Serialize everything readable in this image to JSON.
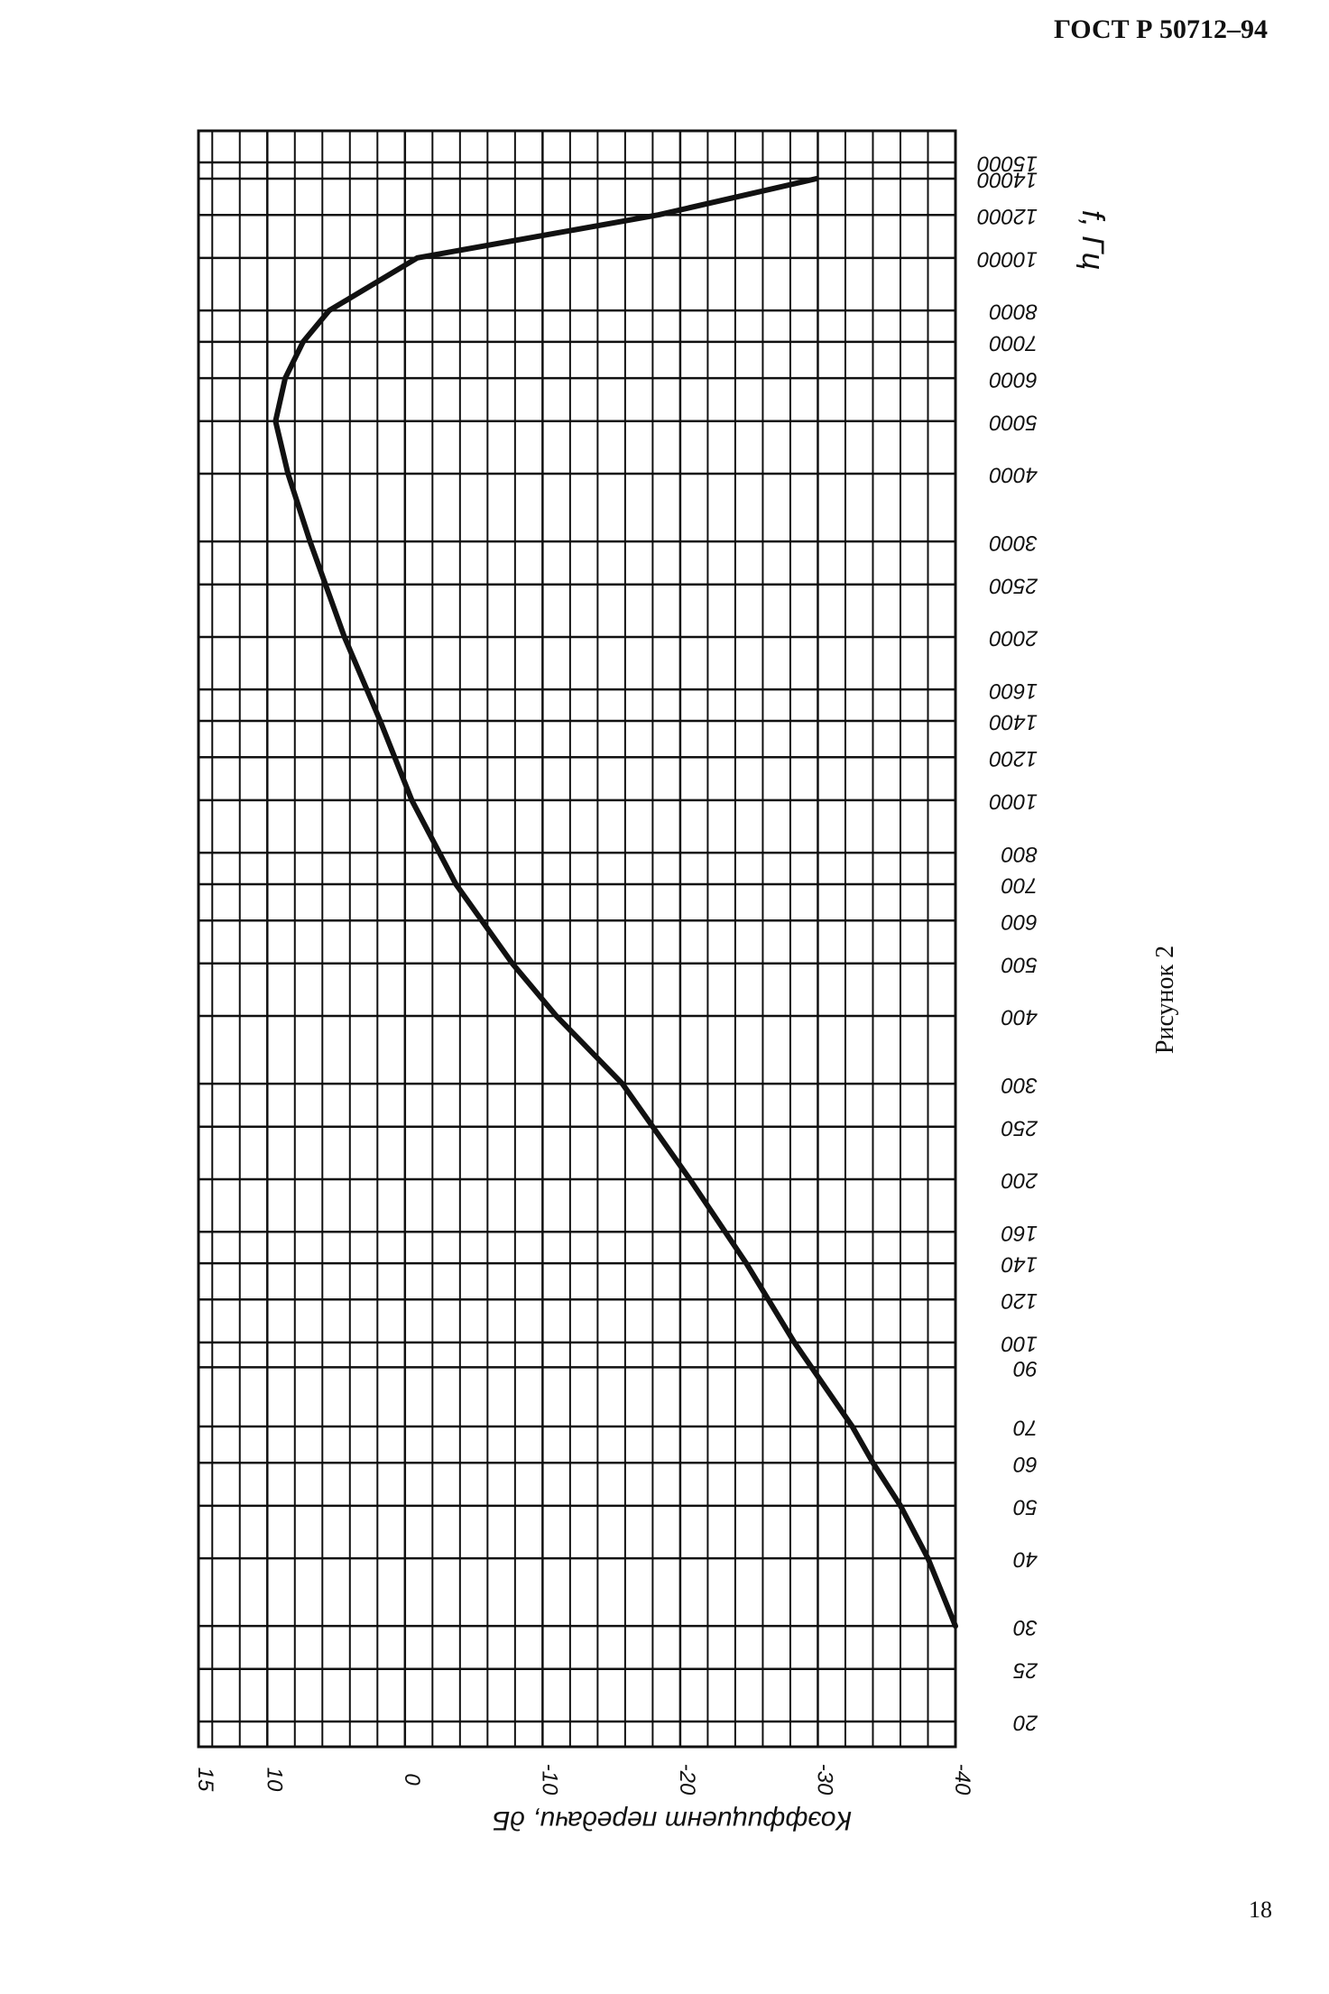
{
  "header": "ГОСТ Р 50712–94",
  "caption": "Рисунок 2",
  "page_number": "18",
  "chart_data": {
    "type": "line",
    "x_label": "f, Гц",
    "y_label": "Коэффициент передачи, дБ",
    "x_log": true,
    "xlim": [
      20,
      15000
    ],
    "xticks": [
      20,
      25,
      30,
      40,
      50,
      60,
      70,
      90,
      100,
      120,
      140,
      160,
      200,
      250,
      300,
      400,
      500,
      600,
      700,
      800,
      1000,
      1200,
      1400,
      1600,
      2000,
      2500,
      3000,
      4000,
      5000,
      6000,
      7000,
      8000,
      10000,
      12000,
      14000,
      15000
    ],
    "ylim": [
      15,
      -40
    ],
    "yticks": [
      15,
      10,
      0,
      -10,
      -20,
      -30,
      -40
    ],
    "yminorticks": [
      14,
      12,
      8,
      6,
      4,
      2,
      -2,
      -4,
      -6,
      -8,
      -12,
      -14,
      -16,
      -18,
      -22,
      -24,
      -26,
      -28,
      -32,
      -34,
      -36,
      -38
    ],
    "grid": true,
    "color": "#111111",
    "x": [
      30,
      40,
      50,
      60,
      70,
      100,
      140,
      200,
      300,
      400,
      500,
      700,
      1000,
      1400,
      2000,
      3000,
      4000,
      5000,
      6000,
      7000,
      8000,
      10000,
      12000,
      14000
    ],
    "values": [
      -40,
      -38,
      -36,
      -34,
      -32.5,
      -28.3,
      -24.8,
      -20.7,
      -15.8,
      -11,
      -7.8,
      -3.7,
      -0.5,
      1.8,
      4.4,
      6.9,
      8.5,
      9.4,
      8.7,
      7.4,
      5.5,
      -0.9,
      -18.4,
      -29.9
    ]
  }
}
